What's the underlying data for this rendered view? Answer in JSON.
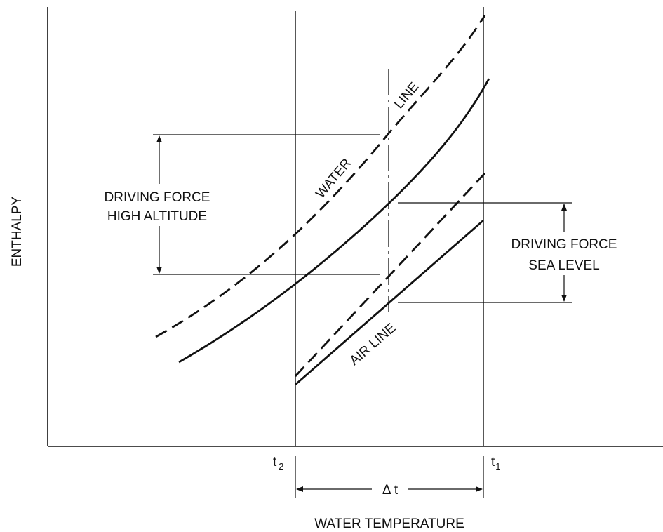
{
  "axes": {
    "x_label": "WATER TEMPERATURE",
    "y_label": "ENTHALPY"
  },
  "ticks": {
    "t2_main": "t",
    "t2_sub": "2",
    "t1_main": "t",
    "t1_sub": "1"
  },
  "delta": {
    "label": "Δ t"
  },
  "curves": {
    "water_line_word1": "WATER",
    "water_line_word2": "LINE",
    "air_line_label": "AIR  LINE"
  },
  "annotations": {
    "high_altitude_line1": "DRIVING FORCE",
    "high_altitude_line2": "HIGH ALTITUDE",
    "sea_level_line1": "DRIVING FORCE",
    "sea_level_line2": "SEA LEVEL"
  },
  "colors": {
    "ink": "#111111",
    "background": "#ffffff"
  }
}
